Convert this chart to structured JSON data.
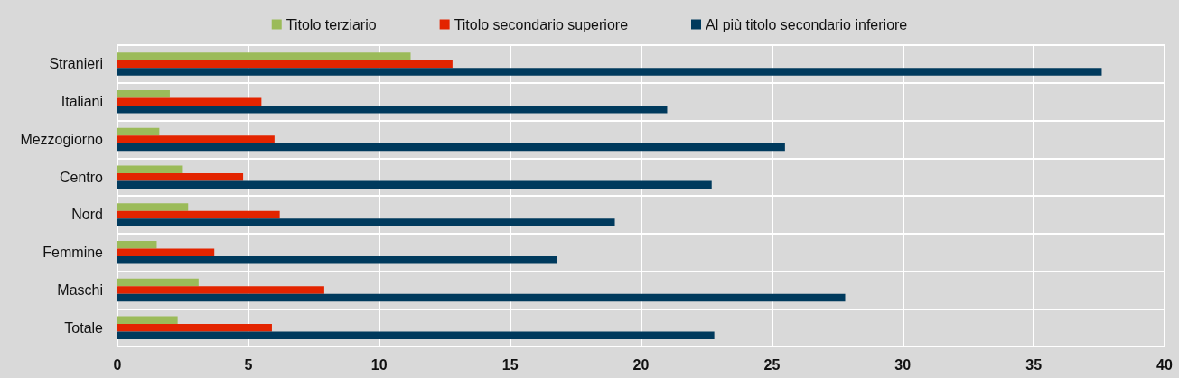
{
  "chart_data": {
    "type": "bar",
    "orientation": "horizontal",
    "categories": [
      "Stranieri",
      "Italiani",
      "Mezzogiorno",
      "Centro",
      "Nord",
      "Femmine",
      "Maschi",
      "Totale"
    ],
    "series": [
      {
        "name": "Titolo terziario",
        "color": "#9bbb59",
        "values": [
          11.2,
          2.0,
          1.6,
          2.5,
          2.7,
          1.5,
          3.1,
          2.3
        ]
      },
      {
        "name": "Titolo secondario superiore",
        "color": "#e32400",
        "values": [
          12.8,
          5.5,
          6.0,
          4.8,
          6.2,
          3.7,
          7.9,
          5.9
        ]
      },
      {
        "name": "Al più titolo secondario inferiore",
        "color": "#003a5d",
        "values": [
          37.6,
          21.0,
          25.5,
          22.7,
          19.0,
          16.8,
          27.8,
          22.8
        ]
      }
    ],
    "xlim": [
      0,
      40
    ],
    "xticks": [
      0,
      5,
      10,
      15,
      20,
      25,
      30,
      35,
      40
    ],
    "grid": true,
    "legend": "top"
  }
}
